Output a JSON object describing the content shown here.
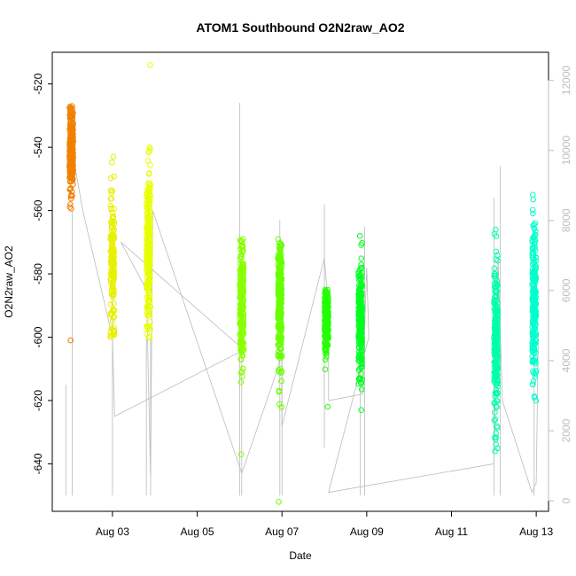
{
  "chart_data": {
    "type": "scatter",
    "title": "ATOM1 Southbound O2N2raw_AO2",
    "xlabel": "Date",
    "ylabel": "O2N2raw_AO2",
    "x_unit": "days since Aug 01",
    "xlim": [
      1.58,
      13.29
    ],
    "ylim": [
      -655,
      -510
    ],
    "y_ticks": [
      -520,
      -540,
      -560,
      -580,
      -600,
      -620,
      -640
    ],
    "x_ticks": [
      {
        "value": 3,
        "label": "Aug 03"
      },
      {
        "value": 5,
        "label": "Aug 05"
      },
      {
        "value": 7,
        "label": "Aug 07"
      },
      {
        "value": 9,
        "label": "Aug 09"
      },
      {
        "value": 11,
        "label": "Aug 11"
      },
      {
        "value": 13,
        "label": "Aug 13"
      }
    ],
    "secondary_axis": {
      "ylim": [
        -300,
        12800
      ],
      "ticks": [
        0,
        2000,
        4000,
        6000,
        8000,
        10000,
        12000
      ],
      "color": "#bdbdbd"
    },
    "clusters": [
      {
        "x": 2.03,
        "y_min": -601,
        "y_max": -527,
        "center": -541,
        "spread": 7,
        "color": "#f08000",
        "n": 260
      },
      {
        "x": 3.0,
        "y_min": -600,
        "y_max": -543,
        "center": -577,
        "spread": 10,
        "color": "#e8f000",
        "n": 160
      },
      {
        "x": 3.85,
        "y_min": -600,
        "y_max": -514,
        "center": -573,
        "spread": 13,
        "color": "#e8ff00",
        "n": 260
      },
      {
        "x": 6.05,
        "y_min": -637,
        "y_max": -569,
        "center": -590,
        "spread": 10,
        "color": "#88ff00",
        "n": 220
      },
      {
        "x": 6.95,
        "y_min": -652,
        "y_max": -569,
        "center": -590,
        "spread": 11,
        "color": "#66ff00",
        "n": 250
      },
      {
        "x": 8.05,
        "y_min": -622,
        "y_max": -585,
        "center": -594,
        "spread": 5,
        "color": "#22ff00",
        "n": 200
      },
      {
        "x": 8.85,
        "y_min": -623,
        "y_max": -568,
        "center": -595,
        "spread": 9,
        "color": "#00ff20",
        "n": 250
      },
      {
        "x": 12.05,
        "y_min": -636,
        "y_max": -566,
        "center": -603,
        "spread": 12,
        "color": "#00ffaa",
        "n": 250
      },
      {
        "x": 12.95,
        "y_min": -620,
        "y_max": -555,
        "center": -590,
        "spread": 12,
        "color": "#00ffcc",
        "n": 250
      }
    ],
    "trace_line": {
      "color": "#bbbbbb",
      "points": [
        [
          2.0,
          -531
        ],
        [
          2.1,
          -545
        ],
        [
          2.3,
          -560
        ],
        [
          3.0,
          -600
        ],
        [
          3.05,
          -625
        ],
        [
          6.1,
          -604
        ],
        [
          3.2,
          -570
        ],
        [
          3.8,
          -585
        ],
        [
          3.9,
          -644
        ],
        [
          3.95,
          -560
        ],
        [
          6.05,
          -643
        ],
        [
          6.9,
          -610
        ],
        [
          7.0,
          -604
        ],
        [
          7.0,
          -628
        ],
        [
          8.0,
          -575
        ],
        [
          8.1,
          -591
        ],
        [
          8.1,
          -620
        ],
        [
          8.9,
          -618
        ],
        [
          9.0,
          -578
        ],
        [
          9.05,
          -600
        ],
        [
          8.1,
          -649
        ],
        [
          12.0,
          -640
        ],
        [
          12.1,
          -575
        ],
        [
          12.2,
          -620
        ],
        [
          12.9,
          -649
        ],
        [
          13.0,
          -646
        ],
        [
          13.05,
          -600
        ]
      ],
      "spikes": [
        {
          "x": 1.9,
          "y_top": -615,
          "y_bottom": -650
        },
        {
          "x": 2.05,
          "y_top": -560,
          "y_bottom": -650
        },
        {
          "x": 3.0,
          "y_top": -568,
          "y_bottom": -650
        },
        {
          "x": 3.8,
          "y_top": -600,
          "y_bottom": -650
        },
        {
          "x": 3.9,
          "y_top": -600,
          "y_bottom": -650
        },
        {
          "x": 6.0,
          "y_top": -526,
          "y_bottom": -650
        },
        {
          "x": 6.05,
          "y_top": -595,
          "y_bottom": -650
        },
        {
          "x": 6.95,
          "y_top": -563,
          "y_bottom": -650
        },
        {
          "x": 7.0,
          "y_top": -605,
          "y_bottom": -650
        },
        {
          "x": 8.0,
          "y_top": -558,
          "y_bottom": -635
        },
        {
          "x": 8.85,
          "y_top": -580,
          "y_bottom": -650
        },
        {
          "x": 8.95,
          "y_top": -565,
          "y_bottom": -650
        },
        {
          "x": 12.0,
          "y_top": -556,
          "y_bottom": -650
        },
        {
          "x": 12.15,
          "y_top": -546,
          "y_bottom": -650
        },
        {
          "x": 12.95,
          "y_top": -570,
          "y_bottom": -650
        }
      ]
    }
  }
}
